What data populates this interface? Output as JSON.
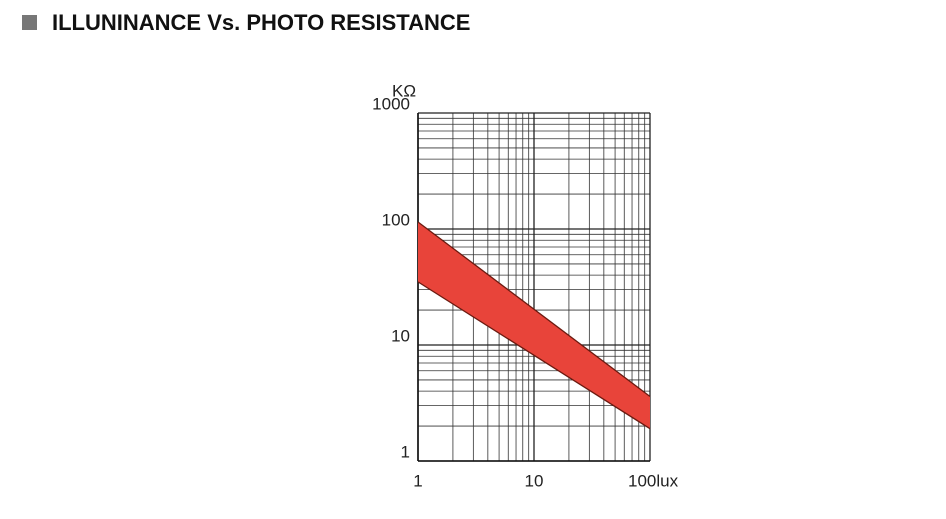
{
  "chart_data": {
    "type": "band",
    "title": "ILLUNINANCE Vs. PHOTO RESISTANCE",
    "y_label": "KΩ",
    "x": [
      1,
      100
    ],
    "upper": [
      115,
      3.6
    ],
    "lower": [
      35,
      1.9
    ],
    "color": "#e8443a",
    "edge_color": "#6b1a10",
    "xlim": [
      1,
      100
    ],
    "ylim": [
      1,
      1000
    ],
    "xticks": [
      1,
      10,
      {
        "value": 100,
        "label": "100lux"
      }
    ],
    "yticks": [
      1,
      10,
      100,
      1000
    ],
    "xlog": true,
    "ylog": true,
    "grid": true
  }
}
